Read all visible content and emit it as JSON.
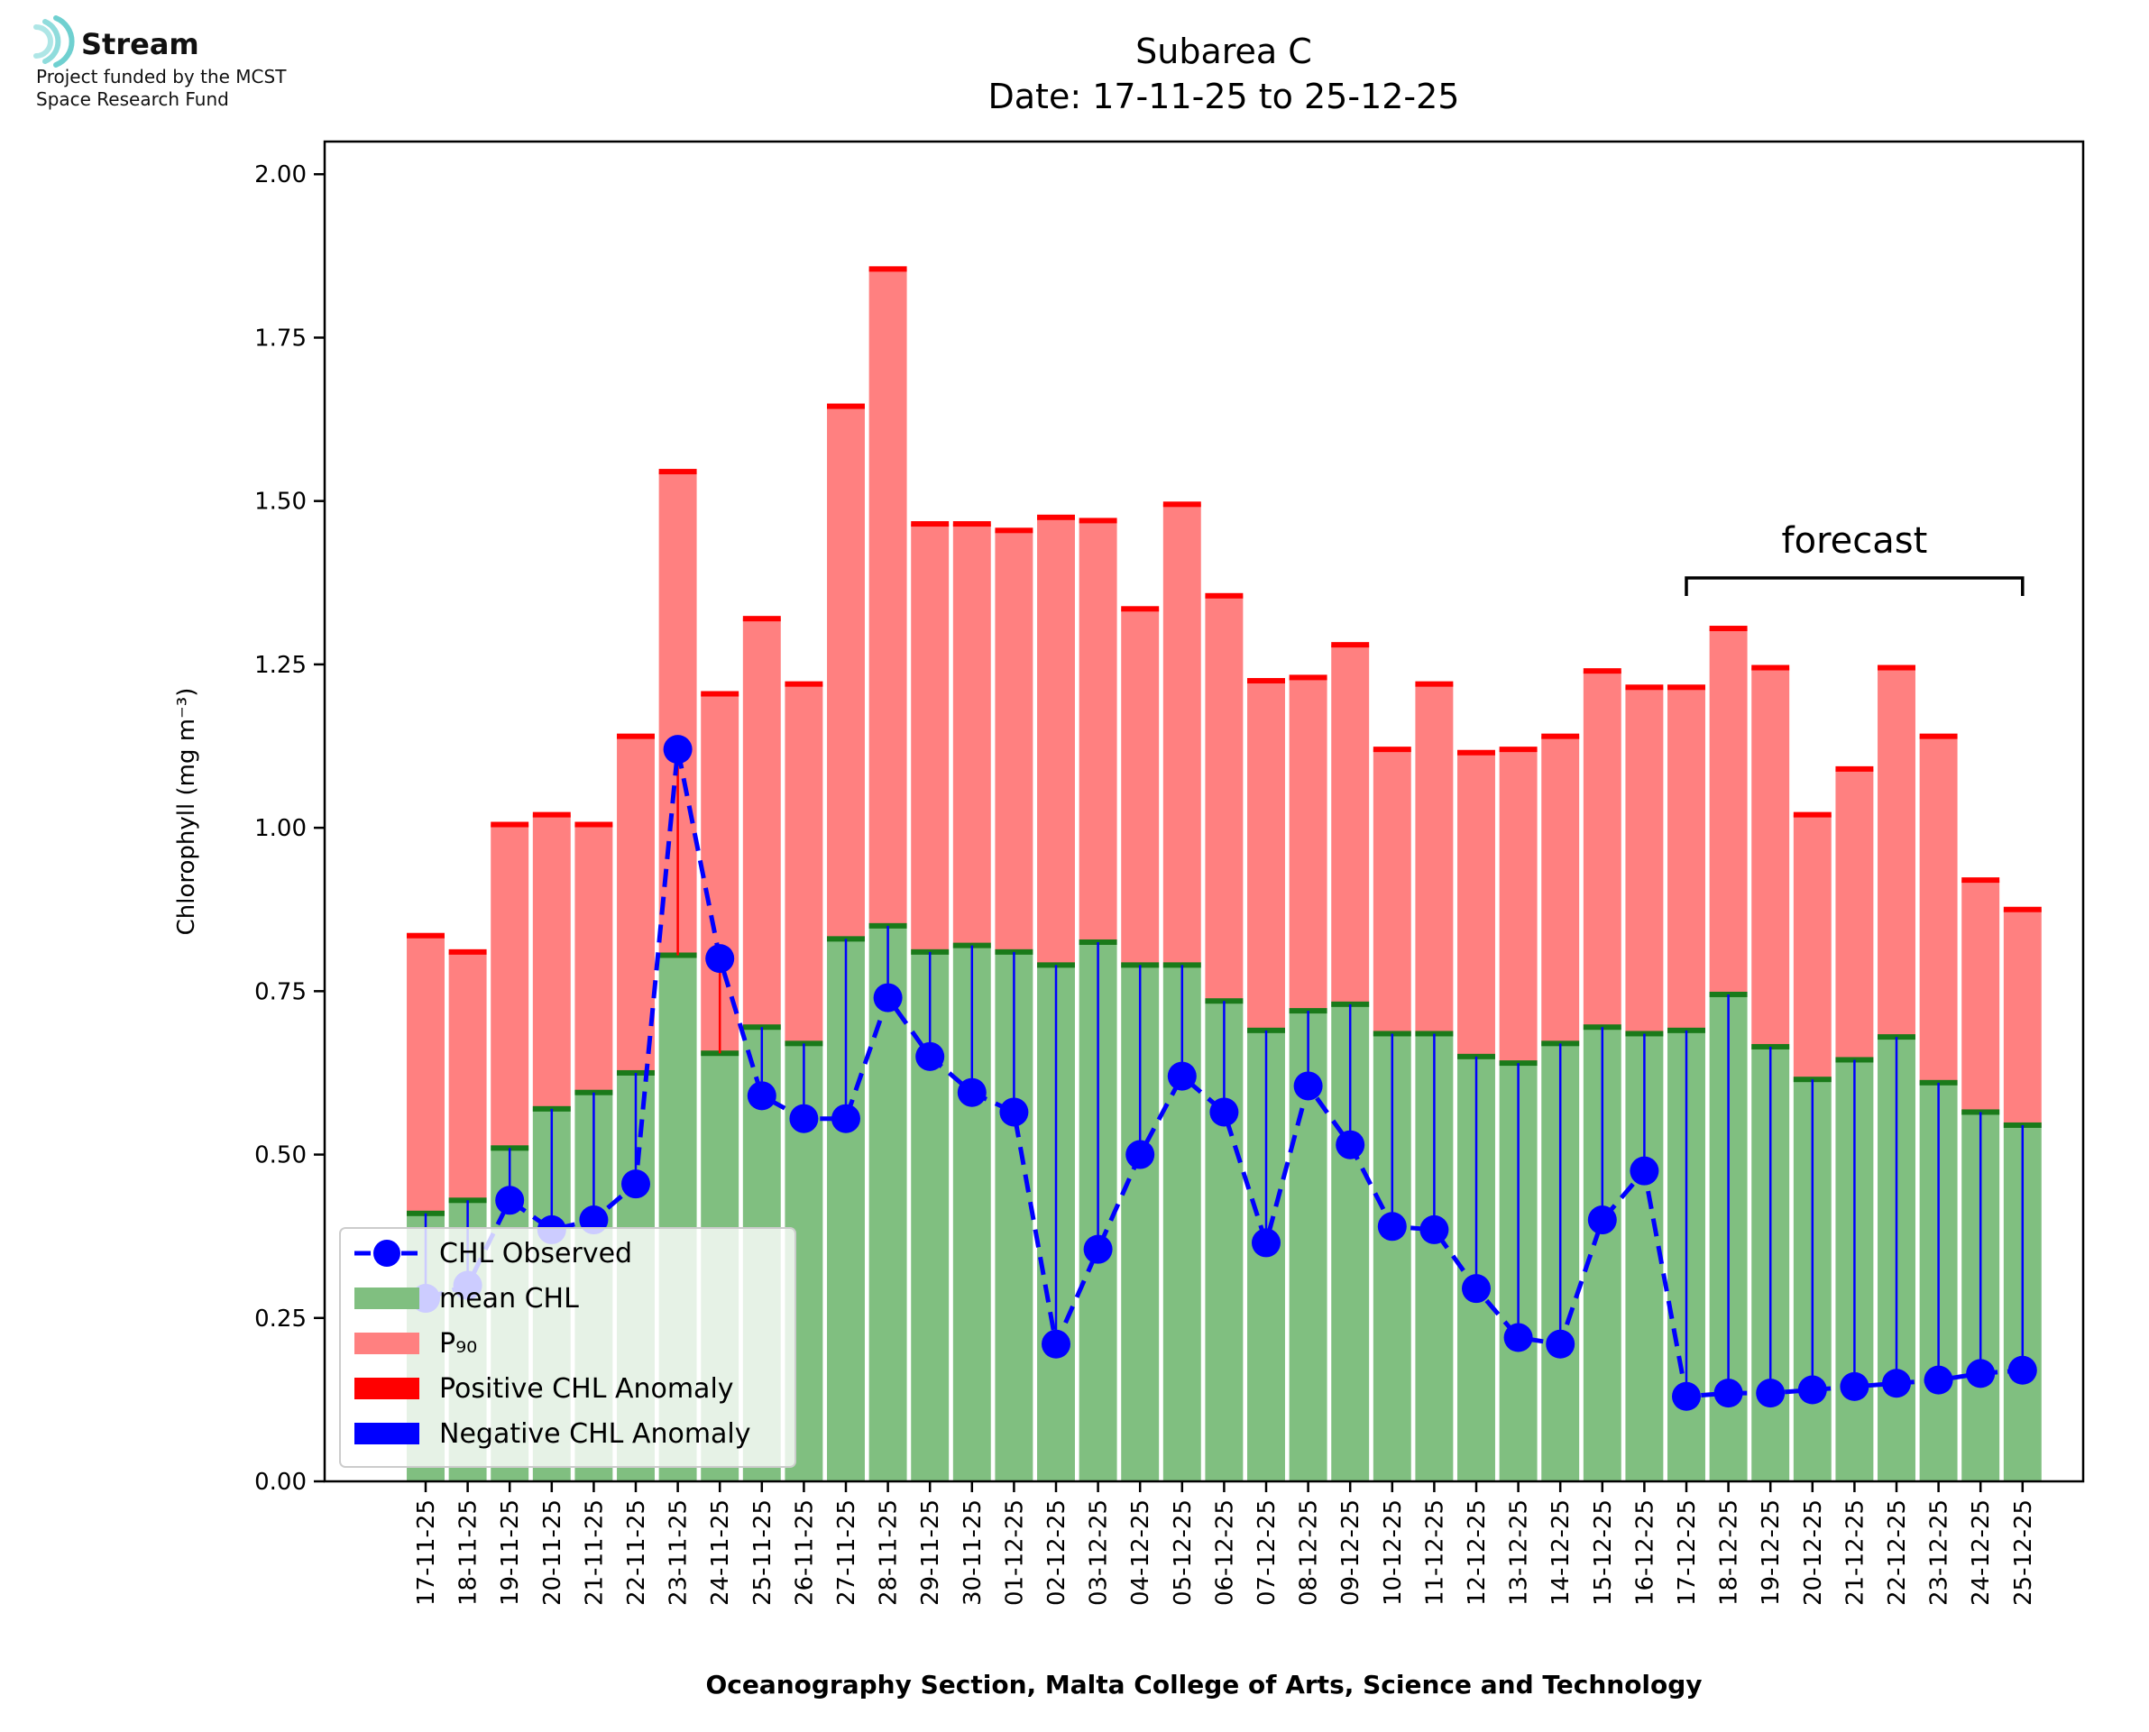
{
  "logo": {
    "name": "Stream",
    "line1": "Project funded by the MCST",
    "line2": "Space Research Fund",
    "icon": "stream-waves-icon",
    "color": "#7fd6d6"
  },
  "chart_data": {
    "type": "bar",
    "title": "Subarea C",
    "subtitle": "Date: 17-11-25 to 25-12-25",
    "xlabel": "Oceanography Section, Malta College of Arts, Science and Technology",
    "ylabel": "Chlorophyll (mg m⁻³)",
    "ylim": [
      0,
      2.05
    ],
    "yticks": [
      "0.00",
      "0.25",
      "0.50",
      "0.75",
      "1.00",
      "1.25",
      "1.50",
      "1.75",
      "2.00"
    ],
    "ytick_values": [
      0,
      0.25,
      0.5,
      0.75,
      1.0,
      1.25,
      1.5,
      1.75,
      2.0
    ],
    "categories": [
      "17-11-25",
      "18-11-25",
      "19-11-25",
      "20-11-25",
      "21-11-25",
      "22-11-25",
      "23-11-25",
      "24-11-25",
      "25-11-25",
      "26-11-25",
      "27-11-25",
      "28-11-25",
      "29-11-25",
      "30-11-25",
      "01-12-25",
      "02-12-25",
      "03-12-25",
      "04-12-25",
      "05-12-25",
      "06-12-25",
      "07-12-25",
      "08-12-25",
      "09-12-25",
      "10-12-25",
      "11-12-25",
      "12-12-25",
      "13-12-25",
      "14-12-25",
      "15-12-25",
      "16-12-25",
      "17-12-25",
      "18-12-25",
      "19-12-25",
      "20-12-25",
      "21-12-25",
      "22-12-25",
      "23-12-25",
      "24-12-25",
      "25-12-25"
    ],
    "series": [
      {
        "name": "mean CHL",
        "color": "#80bf80",
        "values": [
          0.41,
          0.43,
          0.51,
          0.57,
          0.595,
          0.625,
          0.805,
          0.655,
          0.695,
          0.67,
          0.83,
          0.85,
          0.81,
          0.82,
          0.81,
          0.79,
          0.825,
          0.79,
          0.79,
          0.735,
          0.69,
          0.72,
          0.73,
          0.685,
          0.685,
          0.65,
          0.64,
          0.67,
          0.695,
          0.685,
          0.69,
          0.745,
          0.665,
          0.615,
          0.645,
          0.68,
          0.61,
          0.565,
          0.545
        ]
      },
      {
        "name": "P₉₀",
        "color": "#ff8080",
        "values": [
          0.835,
          0.81,
          1.005,
          1.02,
          1.005,
          1.14,
          1.545,
          1.205,
          1.32,
          1.22,
          1.645,
          1.855,
          1.465,
          1.465,
          1.455,
          1.475,
          1.47,
          1.335,
          1.495,
          1.355,
          1.225,
          1.23,
          1.28,
          1.12,
          1.22,
          1.115,
          1.12,
          1.14,
          1.24,
          1.215,
          1.215,
          1.305,
          1.245,
          1.02,
          1.09,
          1.245,
          1.14,
          0.92,
          0.875
        ]
      },
      {
        "name": "CHL Observed",
        "color": "#0000ff",
        "values": [
          0.28,
          0.3,
          0.43,
          0.385,
          0.4,
          0.455,
          1.12,
          0.8,
          0.59,
          0.555,
          0.555,
          0.74,
          0.65,
          0.595,
          0.565,
          0.21,
          0.355,
          0.5,
          0.62,
          0.565,
          0.365,
          0.605,
          0.515,
          0.39,
          0.385,
          0.295,
          0.22,
          0.21,
          0.4,
          0.475,
          0.13,
          0.135,
          0.135,
          0.14,
          0.145,
          0.15,
          0.155,
          0.165,
          0.17
        ]
      }
    ],
    "legend": {
      "placement": "lower-left",
      "entries": [
        "CHL Observed",
        "mean CHL",
        "P₉₀",
        "Positive CHL Anomaly",
        "Negative CHL Anomaly"
      ],
      "colors": [
        "#0000ff",
        "#80bf80",
        "#ff8080",
        "#ff0000",
        "#0000ff"
      ]
    },
    "anomaly_colors": {
      "positive": "#ff0000",
      "negative": "#0000ff",
      "mean_cap": "#1a7a1a",
      "p90_cap": "#ff0000"
    },
    "annotation": {
      "text": "forecast",
      "from": "17-12-25",
      "to": "25-12-25"
    }
  }
}
